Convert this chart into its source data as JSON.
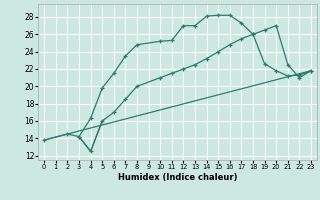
{
  "xlabel": "Humidex (Indice chaleur)",
  "bg_color": "#cde8e0",
  "grid_color": "#ffffff",
  "line_color": "#2a7d6e",
  "xlim": [
    -0.5,
    23.5
  ],
  "ylim": [
    11.5,
    29.5
  ],
  "xticks": [
    0,
    1,
    2,
    3,
    4,
    5,
    6,
    7,
    8,
    9,
    10,
    11,
    12,
    13,
    14,
    15,
    16,
    17,
    18,
    19,
    20,
    21,
    22,
    23
  ],
  "yticks": [
    12,
    14,
    16,
    18,
    20,
    22,
    24,
    26,
    28
  ],
  "line1_x": [
    0,
    2,
    3,
    4,
    5,
    6,
    7,
    8,
    10,
    11,
    12,
    13,
    14,
    15,
    16,
    17,
    18,
    19,
    20,
    21,
    22,
    23
  ],
  "line1_y": [
    13.8,
    14.5,
    14.2,
    16.3,
    19.8,
    21.5,
    23.5,
    24.8,
    25.2,
    25.3,
    27.0,
    27.0,
    28.1,
    28.2,
    28.2,
    27.3,
    26.0,
    22.6,
    21.8,
    21.2,
    21.3,
    21.8
  ],
  "line2_x": [
    0,
    23
  ],
  "line2_y": [
    13.8,
    21.8
  ],
  "line3_x": [
    3,
    4,
    5,
    6,
    7,
    8,
    10,
    11,
    12,
    13,
    14,
    15,
    16,
    17,
    18,
    19,
    20,
    21,
    22,
    23
  ],
  "line3_y": [
    14.2,
    12.5,
    16.0,
    17.0,
    18.5,
    20.0,
    21.0,
    21.5,
    22.0,
    22.5,
    23.2,
    24.0,
    24.8,
    25.5,
    26.0,
    26.5,
    27.0,
    22.5,
    21.0,
    21.8
  ]
}
